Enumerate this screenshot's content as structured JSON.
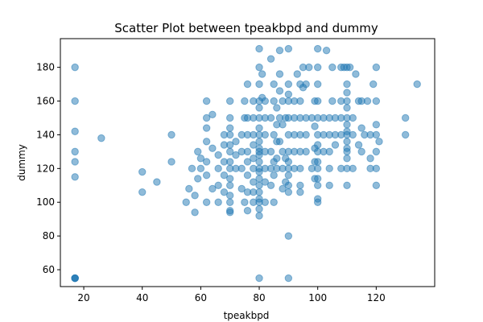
{
  "chart_data": {
    "type": "scatter",
    "title": "Scatter Plot between tpeakbpd and dummy",
    "xlabel": "tpeakbpd",
    "ylabel": "dummy",
    "xlim": [
      12,
      140
    ],
    "ylim": [
      50,
      197
    ],
    "xticks": [
      20,
      40,
      60,
      80,
      100,
      120
    ],
    "yticks": [
      60,
      80,
      100,
      120,
      140,
      160,
      180
    ],
    "grid": false,
    "point_color": "#1f77b4",
    "point_alpha": 0.5,
    "series": [
      {
        "points": [
          [
            17,
            180
          ],
          [
            17,
            160
          ],
          [
            17,
            142
          ],
          [
            17,
            130
          ],
          [
            17,
            124
          ],
          [
            17,
            115
          ],
          [
            17,
            55
          ],
          [
            17,
            55
          ],
          [
            17,
            55
          ],
          [
            17,
            55
          ],
          [
            26,
            138
          ],
          [
            40,
            118
          ],
          [
            40,
            106
          ],
          [
            45,
            112
          ],
          [
            50,
            140
          ],
          [
            50,
            124
          ],
          [
            55,
            100
          ],
          [
            56,
            108
          ],
          [
            57,
            120
          ],
          [
            58,
            94
          ],
          [
            58,
            104
          ],
          [
            59,
            114
          ],
          [
            59,
            130
          ],
          [
            60,
            120
          ],
          [
            60,
            126
          ],
          [
            62,
            160
          ],
          [
            62,
            150
          ],
          [
            62,
            144
          ],
          [
            62,
            136
          ],
          [
            62,
            124
          ],
          [
            62,
            116
          ],
          [
            62,
            100
          ],
          [
            64,
            152
          ],
          [
            64,
            132
          ],
          [
            64,
            108
          ],
          [
            66,
            128
          ],
          [
            66,
            120
          ],
          [
            66,
            110
          ],
          [
            66,
            100
          ],
          [
            68,
            140
          ],
          [
            68,
            134
          ],
          [
            68,
            124
          ],
          [
            68,
            116
          ],
          [
            68,
            106
          ],
          [
            70,
            160
          ],
          [
            70,
            150
          ],
          [
            70,
            144
          ],
          [
            70,
            140
          ],
          [
            70,
            134
          ],
          [
            70,
            130
          ],
          [
            70,
            124
          ],
          [
            70,
            120
          ],
          [
            70,
            114
          ],
          [
            70,
            110
          ],
          [
            70,
            104
          ],
          [
            70,
            100
          ],
          [
            70,
            95
          ],
          [
            70,
            94
          ],
          [
            72,
            136
          ],
          [
            72,
            128
          ],
          [
            72,
            120
          ],
          [
            74,
            140
          ],
          [
            74,
            130
          ],
          [
            74,
            120
          ],
          [
            74,
            108
          ],
          [
            75,
            160
          ],
          [
            75,
            150
          ],
          [
            75,
            100
          ],
          [
            76,
            170
          ],
          [
            76,
            150
          ],
          [
            76,
            140
          ],
          [
            76,
            130
          ],
          [
            76,
            124
          ],
          [
            76,
            116
          ],
          [
            76,
            106
          ],
          [
            76,
            95
          ],
          [
            78,
            160
          ],
          [
            78,
            150
          ],
          [
            78,
            140
          ],
          [
            78,
            134
          ],
          [
            78,
            126
          ],
          [
            78,
            120
          ],
          [
            78,
            112
          ],
          [
            78,
            106
          ],
          [
            78,
            100
          ],
          [
            80,
            191
          ],
          [
            80,
            180
          ],
          [
            80,
            170
          ],
          [
            80,
            160
          ],
          [
            80,
            156
          ],
          [
            80,
            150
          ],
          [
            80,
            144
          ],
          [
            80,
            140
          ],
          [
            80,
            136
          ],
          [
            80,
            132
          ],
          [
            80,
            130
          ],
          [
            80,
            128
          ],
          [
            80,
            124
          ],
          [
            80,
            120
          ],
          [
            80,
            118
          ],
          [
            80,
            114
          ],
          [
            80,
            110
          ],
          [
            80,
            106
          ],
          [
            80,
            102
          ],
          [
            80,
            100
          ],
          [
            80,
            96
          ],
          [
            80,
            92
          ],
          [
            80,
            55
          ],
          [
            81,
            176
          ],
          [
            81,
            162
          ],
          [
            82,
            160
          ],
          [
            82,
            150
          ],
          [
            82,
            140
          ],
          [
            82,
            130
          ],
          [
            82,
            120
          ],
          [
            82,
            112
          ],
          [
            82,
            100
          ],
          [
            84,
            185
          ],
          [
            84,
            150
          ],
          [
            84,
            130
          ],
          [
            84,
            120
          ],
          [
            84,
            110
          ],
          [
            85,
            170
          ],
          [
            85,
            160
          ],
          [
            85,
            140
          ],
          [
            85,
            124
          ],
          [
            85,
            116
          ],
          [
            85,
            100
          ],
          [
            86,
            156
          ],
          [
            86,
            146
          ],
          [
            86,
            136
          ],
          [
            86,
            126
          ],
          [
            86,
            120
          ],
          [
            87,
            190
          ],
          [
            87,
            176
          ],
          [
            87,
            166
          ],
          [
            87,
            150
          ],
          [
            87,
            136
          ],
          [
            88,
            160
          ],
          [
            88,
            146
          ],
          [
            88,
            130
          ],
          [
            88,
            120
          ],
          [
            88,
            108
          ],
          [
            89,
            150
          ],
          [
            89,
            126
          ],
          [
            89,
            112
          ],
          [
            90,
            191
          ],
          [
            90,
            170
          ],
          [
            90,
            164
          ],
          [
            90,
            160
          ],
          [
            90,
            150
          ],
          [
            90,
            140
          ],
          [
            90,
            130
          ],
          [
            90,
            124
          ],
          [
            90,
            120
          ],
          [
            90,
            116
          ],
          [
            90,
            110
          ],
          [
            90,
            106
          ],
          [
            90,
            80
          ],
          [
            90,
            55
          ],
          [
            92,
            160
          ],
          [
            92,
            150
          ],
          [
            92,
            140
          ],
          [
            92,
            130
          ],
          [
            92,
            120
          ],
          [
            93,
            176
          ],
          [
            94,
            170
          ],
          [
            94,
            160
          ],
          [
            94,
            150
          ],
          [
            94,
            140
          ],
          [
            94,
            130
          ],
          [
            94,
            120
          ],
          [
            94,
            110
          ],
          [
            94,
            106
          ],
          [
            95,
            180
          ],
          [
            95,
            168
          ],
          [
            96,
            170
          ],
          [
            96,
            150
          ],
          [
            96,
            140
          ],
          [
            96,
            130
          ],
          [
            97,
            180
          ],
          [
            98,
            120
          ],
          [
            98,
            150
          ],
          [
            99,
            160
          ],
          [
            99,
            145
          ],
          [
            99,
            132
          ],
          [
            99,
            124
          ],
          [
            99,
            114
          ],
          [
            100,
            191
          ],
          [
            100,
            180
          ],
          [
            100,
            170
          ],
          [
            100,
            160
          ],
          [
            100,
            150
          ],
          [
            100,
            140
          ],
          [
            100,
            134
          ],
          [
            100,
            130
          ],
          [
            100,
            124
          ],
          [
            100,
            120
          ],
          [
            100,
            114
          ],
          [
            100,
            110
          ],
          [
            100,
            102
          ],
          [
            100,
            100
          ],
          [
            102,
            150
          ],
          [
            102,
            140
          ],
          [
            102,
            130
          ],
          [
            103,
            190
          ],
          [
            104,
            150
          ],
          [
            104,
            140
          ],
          [
            104,
            130
          ],
          [
            104,
            120
          ],
          [
            104,
            110
          ],
          [
            105,
            180
          ],
          [
            105,
            160
          ],
          [
            106,
            150
          ],
          [
            106,
            140
          ],
          [
            106,
            134
          ],
          [
            108,
            180
          ],
          [
            108,
            160
          ],
          [
            108,
            150
          ],
          [
            108,
            140
          ],
          [
            108,
            120
          ],
          [
            109,
            180
          ],
          [
            110,
            180
          ],
          [
            110,
            170
          ],
          [
            110,
            165
          ],
          [
            110,
            160
          ],
          [
            110,
            156
          ],
          [
            110,
            150
          ],
          [
            110,
            146
          ],
          [
            110,
            142
          ],
          [
            110,
            140
          ],
          [
            110,
            136
          ],
          [
            110,
            132
          ],
          [
            110,
            130
          ],
          [
            110,
            126
          ],
          [
            110,
            120
          ],
          [
            110,
            110
          ],
          [
            111,
            180
          ],
          [
            112,
            150
          ],
          [
            112,
            140
          ],
          [
            112,
            120
          ],
          [
            113,
            176
          ],
          [
            114,
            160
          ],
          [
            114,
            134
          ],
          [
            115,
            144
          ],
          [
            115,
            160
          ],
          [
            115,
            130
          ],
          [
            116,
            140
          ],
          [
            117,
            160
          ],
          [
            118,
            140
          ],
          [
            118,
            126
          ],
          [
            118,
            120
          ],
          [
            119,
            170
          ],
          [
            120,
            180
          ],
          [
            120,
            160
          ],
          [
            120,
            146
          ],
          [
            120,
            140
          ],
          [
            120,
            130
          ],
          [
            120,
            120
          ],
          [
            120,
            110
          ],
          [
            121,
            136
          ],
          [
            130,
            150
          ],
          [
            130,
            140
          ],
          [
            134,
            170
          ]
        ]
      }
    ]
  }
}
